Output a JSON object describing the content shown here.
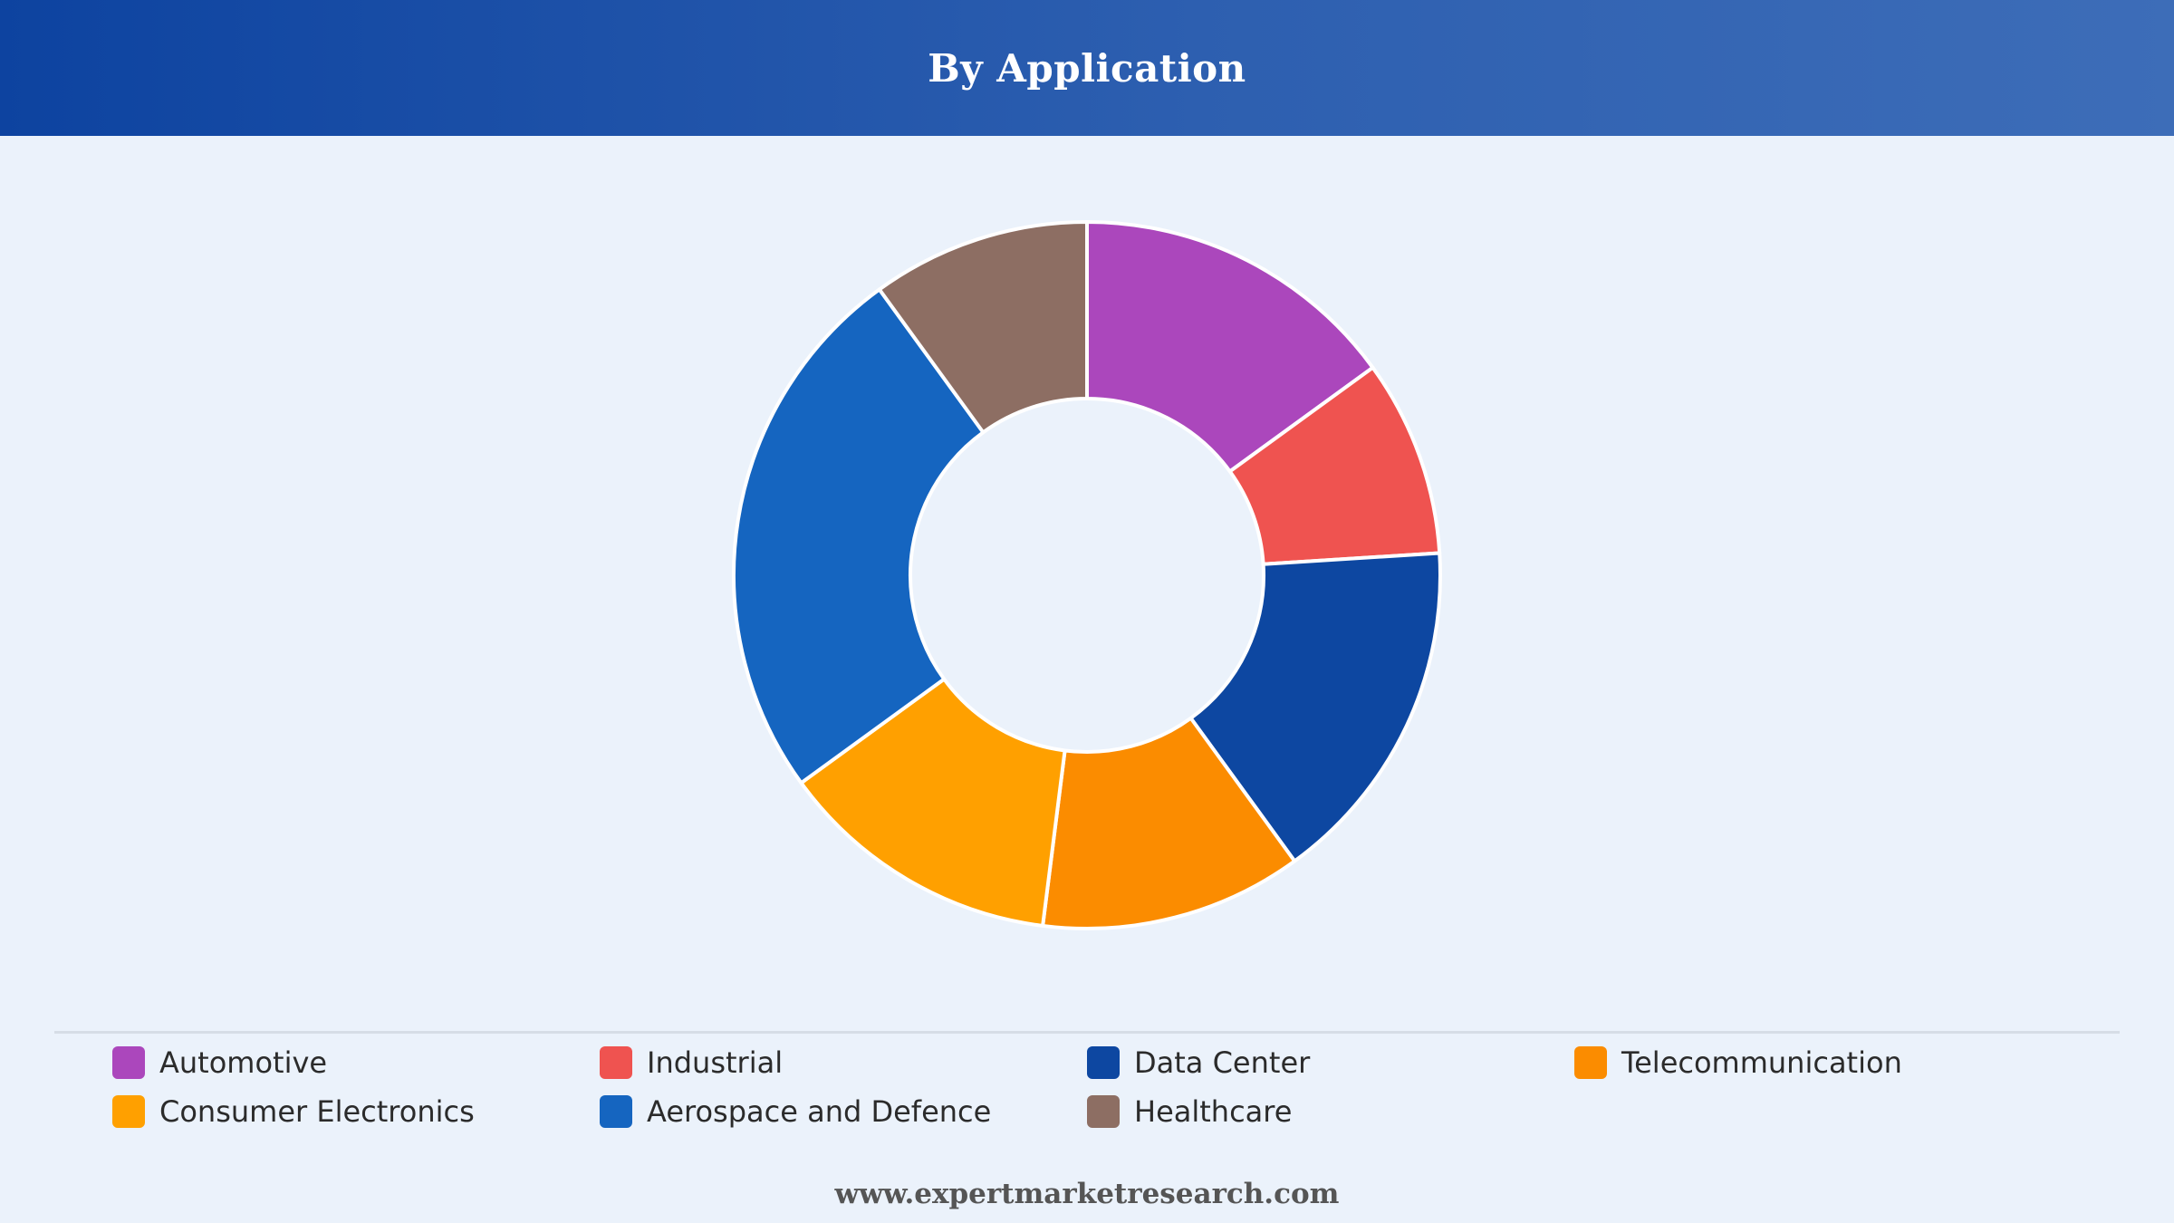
{
  "header": {
    "title": "By Application"
  },
  "chart_data": {
    "type": "pie",
    "donut": true,
    "categories": [
      "Automotive",
      "Industrial",
      "Data Center",
      "Telecommunication",
      "Consumer Electronics",
      "Aerospace and Defence",
      "Healthcare"
    ],
    "values": [
      15,
      9,
      16,
      12,
      13,
      25,
      10
    ],
    "colors": [
      "#ab47bc",
      "#ef5350",
      "#0d47a1",
      "#fb8c00",
      "#ffa000",
      "#1565c0",
      "#8d6e63"
    ],
    "legend_position": "bottom",
    "title": "By Application"
  },
  "footer": {
    "text": "www.expertmarketresearch.com"
  }
}
